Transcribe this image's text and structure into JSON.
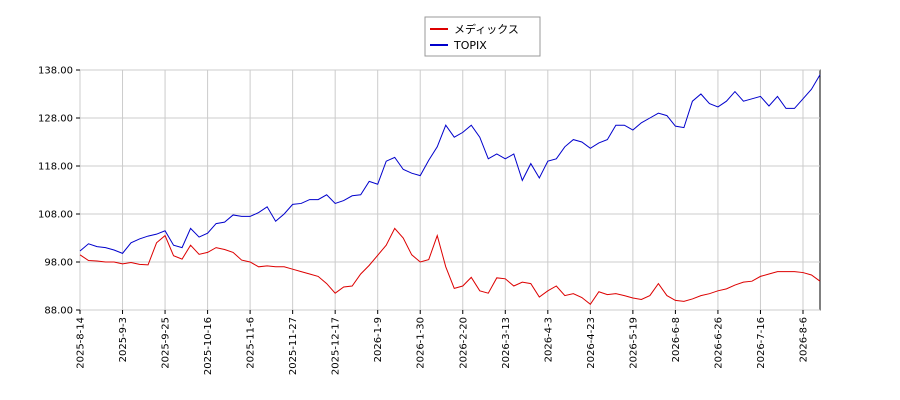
{
  "chart_data": {
    "type": "line",
    "categories": [
      "2025-8-14",
      null,
      null,
      null,
      null,
      "2025-9-3",
      null,
      null,
      null,
      null,
      "2025-9-25",
      null,
      null,
      null,
      null,
      "2025-10-16",
      null,
      null,
      null,
      null,
      "2025-11-6",
      null,
      null,
      null,
      null,
      "2025-11-27",
      null,
      null,
      null,
      null,
      "2025-12-17",
      null,
      null,
      null,
      null,
      "2026-1-9",
      null,
      null,
      null,
      null,
      "2026-1-30",
      null,
      null,
      null,
      null,
      "2026-2-20",
      null,
      null,
      null,
      null,
      "2026-3-13",
      null,
      null,
      null,
      null,
      "2026-4-3",
      null,
      null,
      null,
      null,
      "2026-4-23",
      null,
      null,
      null,
      null,
      "2026-5-19",
      null,
      null,
      null,
      null,
      "2026-6-8",
      null,
      null,
      null,
      null,
      "2026-6-26",
      null,
      null,
      null,
      null,
      "2026-7-16",
      null,
      null,
      null,
      null,
      "2026-8-6",
      null,
      null
    ],
    "series": [
      {
        "name": "メディックス",
        "color": "#dd0000",
        "values": [
          99.5,
          98.3,
          98.2,
          98,
          98,
          97.6,
          97.9,
          97.5,
          97.4,
          102,
          103.5,
          99.3,
          98.6,
          101.5,
          99.6,
          100,
          101,
          100.6,
          100,
          98.4,
          98,
          97,
          97.2,
          97,
          97,
          96.5,
          96,
          95.5,
          95,
          93.5,
          91.5,
          92.8,
          93,
          95.5,
          97.3,
          99.4,
          101.5,
          105,
          103,
          99.5,
          98,
          98.5,
          103.5,
          97,
          92.5,
          93,
          94.8,
          92,
          91.5,
          94.7,
          94.5,
          93,
          93.8,
          93.5,
          90.7,
          92,
          93,
          91,
          91.4,
          90.6,
          89.2,
          91.8,
          91.2,
          91.4,
          91,
          90.5,
          90.2,
          91,
          93.5,
          91,
          90,
          89.8,
          90.3,
          91,
          91.4,
          92,
          92.4,
          93.2,
          93.8,
          94,
          95,
          95.5,
          96,
          96,
          96,
          95.8,
          95.3,
          94
        ]
      },
      {
        "name": "TOPIX",
        "color": "#0000cc",
        "values": [
          100.3,
          101.8,
          101.2,
          101,
          100.5,
          99.8,
          102,
          102.8,
          103.4,
          103.8,
          104.5,
          101.5,
          101,
          105,
          103.2,
          104,
          106,
          106.3,
          107.8,
          107.5,
          107.5,
          108.3,
          109.5,
          106.5,
          108,
          110,
          110.2,
          111,
          111,
          112,
          110.2,
          110.8,
          111.8,
          112,
          114.8,
          114.2,
          119,
          119.8,
          117.3,
          116.5,
          116,
          119.2,
          122,
          126.5,
          124,
          125,
          126.5,
          124,
          119.5,
          120.5,
          119.5,
          120.5,
          115,
          118.5,
          115.5,
          119,
          119.5,
          122,
          123.5,
          123,
          121.7,
          122.8,
          123.5,
          126.5,
          126.5,
          125.5,
          127,
          128,
          129,
          128.5,
          126.3,
          126,
          131.5,
          133,
          131,
          130.3,
          131.5,
          133.5,
          131.5,
          132,
          132.5,
          130.5,
          132.5,
          130,
          130,
          132,
          134,
          137
        ]
      }
    ],
    "ylim": [
      88,
      138
    ],
    "yticks": [
      {
        "value": 88,
        "label": "88.00"
      },
      {
        "value": 98,
        "label": "98.00"
      },
      {
        "value": 108,
        "label": "108.00"
      },
      {
        "value": 118,
        "label": "118.00"
      },
      {
        "value": 128,
        "label": "128.00"
      },
      {
        "value": 138,
        "label": "138.00"
      }
    ],
    "grid": true,
    "legend": "top"
  }
}
